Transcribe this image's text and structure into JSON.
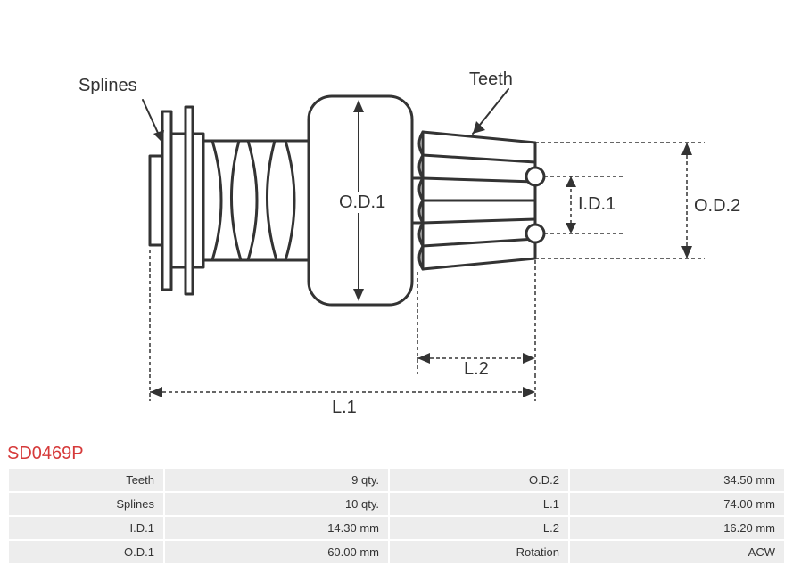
{
  "part_number": "SD0469P",
  "diagram": {
    "type": "engineering-diagram",
    "stroke_color": "#333333",
    "stroke_width": 3,
    "dash_stroke_width": 1.5,
    "dash_pattern": "4 3",
    "text_color": "#333333",
    "label_fontsize": 20,
    "labels": {
      "splines": "Splines",
      "teeth": "Teeth",
      "od1": "O.D.1",
      "od2": "O.D.2",
      "id1": "I.D.1",
      "l1": "L.1",
      "l2": "L.2"
    }
  },
  "specs": [
    {
      "k1": "Teeth",
      "v1": "9 qty.",
      "k2": "O.D.2",
      "v2": "34.50 mm"
    },
    {
      "k1": "Splines",
      "v1": "10 qty.",
      "k2": "L.1",
      "v2": "74.00 mm"
    },
    {
      "k1": "I.D.1",
      "v1": "14.30 mm",
      "k2": "L.2",
      "v2": "16.20 mm"
    },
    {
      "k1": "O.D.1",
      "v1": "60.00 mm",
      "k2": "Rotation",
      "v2": "ACW"
    }
  ],
  "table_style": {
    "row_bg": "#ededed",
    "fontsize": 13,
    "text_color": "#333333"
  }
}
